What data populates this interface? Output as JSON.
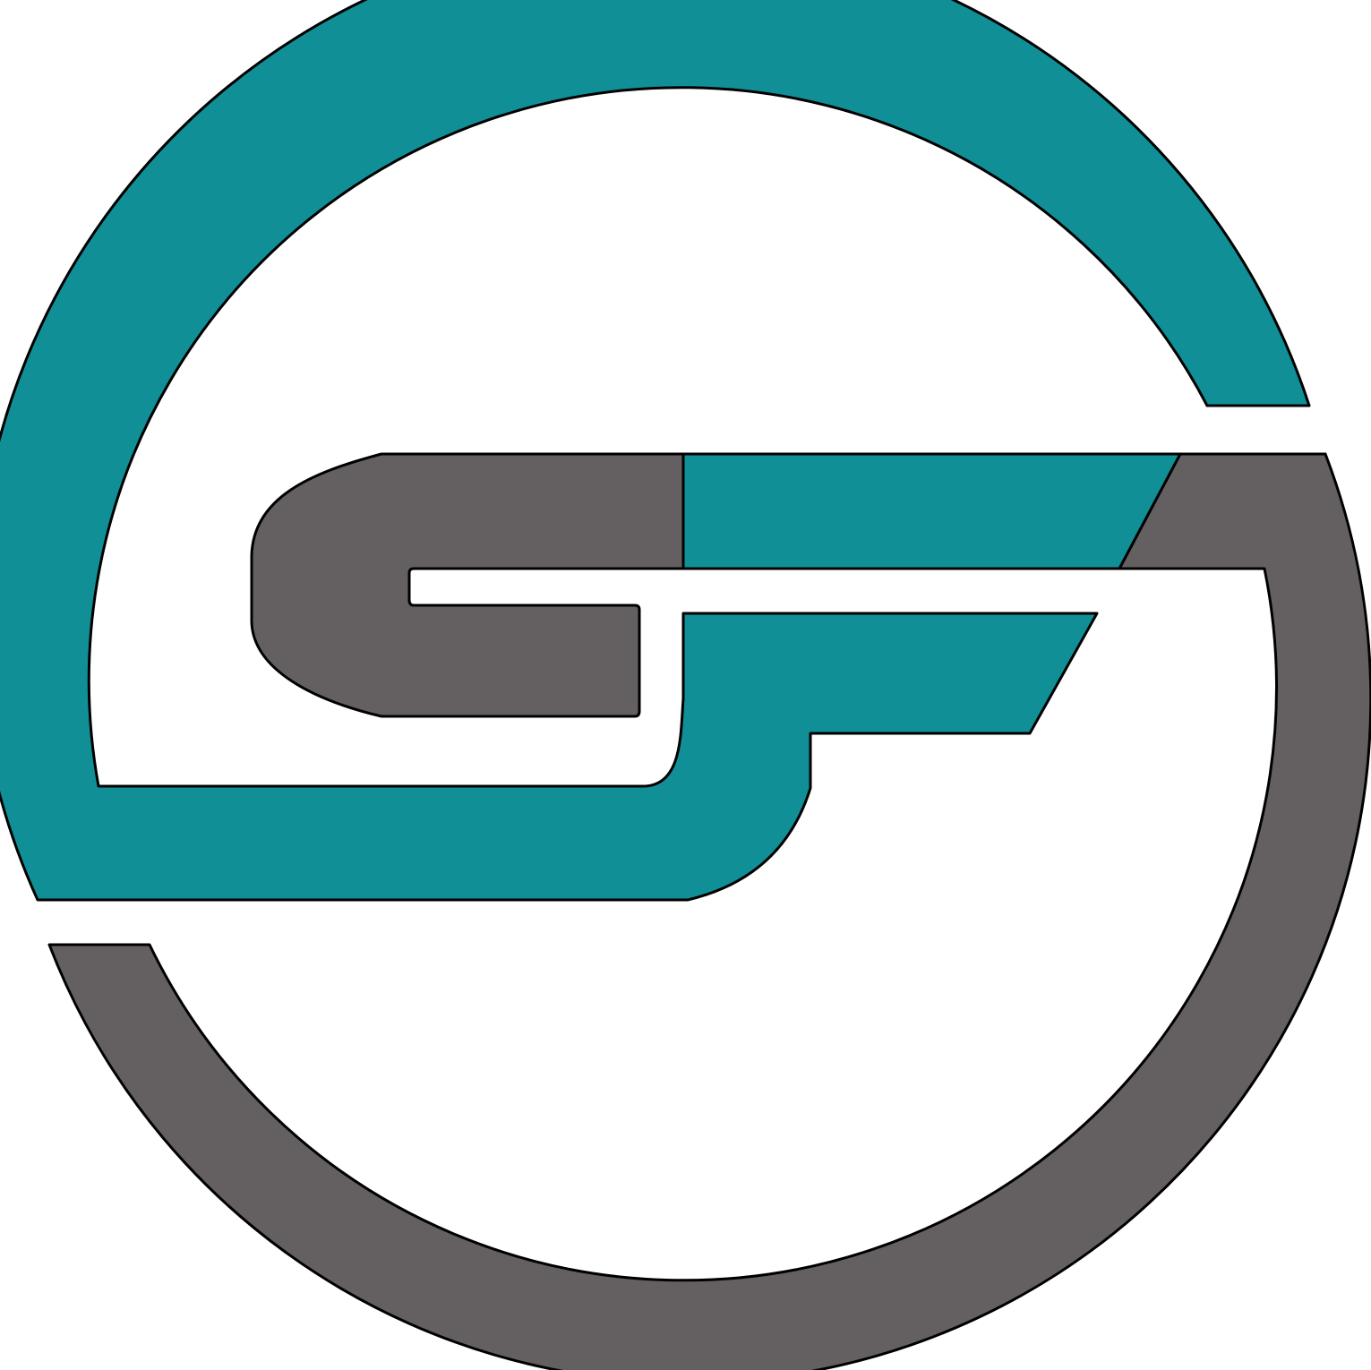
{
  "logo": {
    "monogram": "GF",
    "colors": {
      "teal": "#108f97",
      "gray": "#646061",
      "outline": "#000000",
      "background": "#ffffff"
    }
  }
}
